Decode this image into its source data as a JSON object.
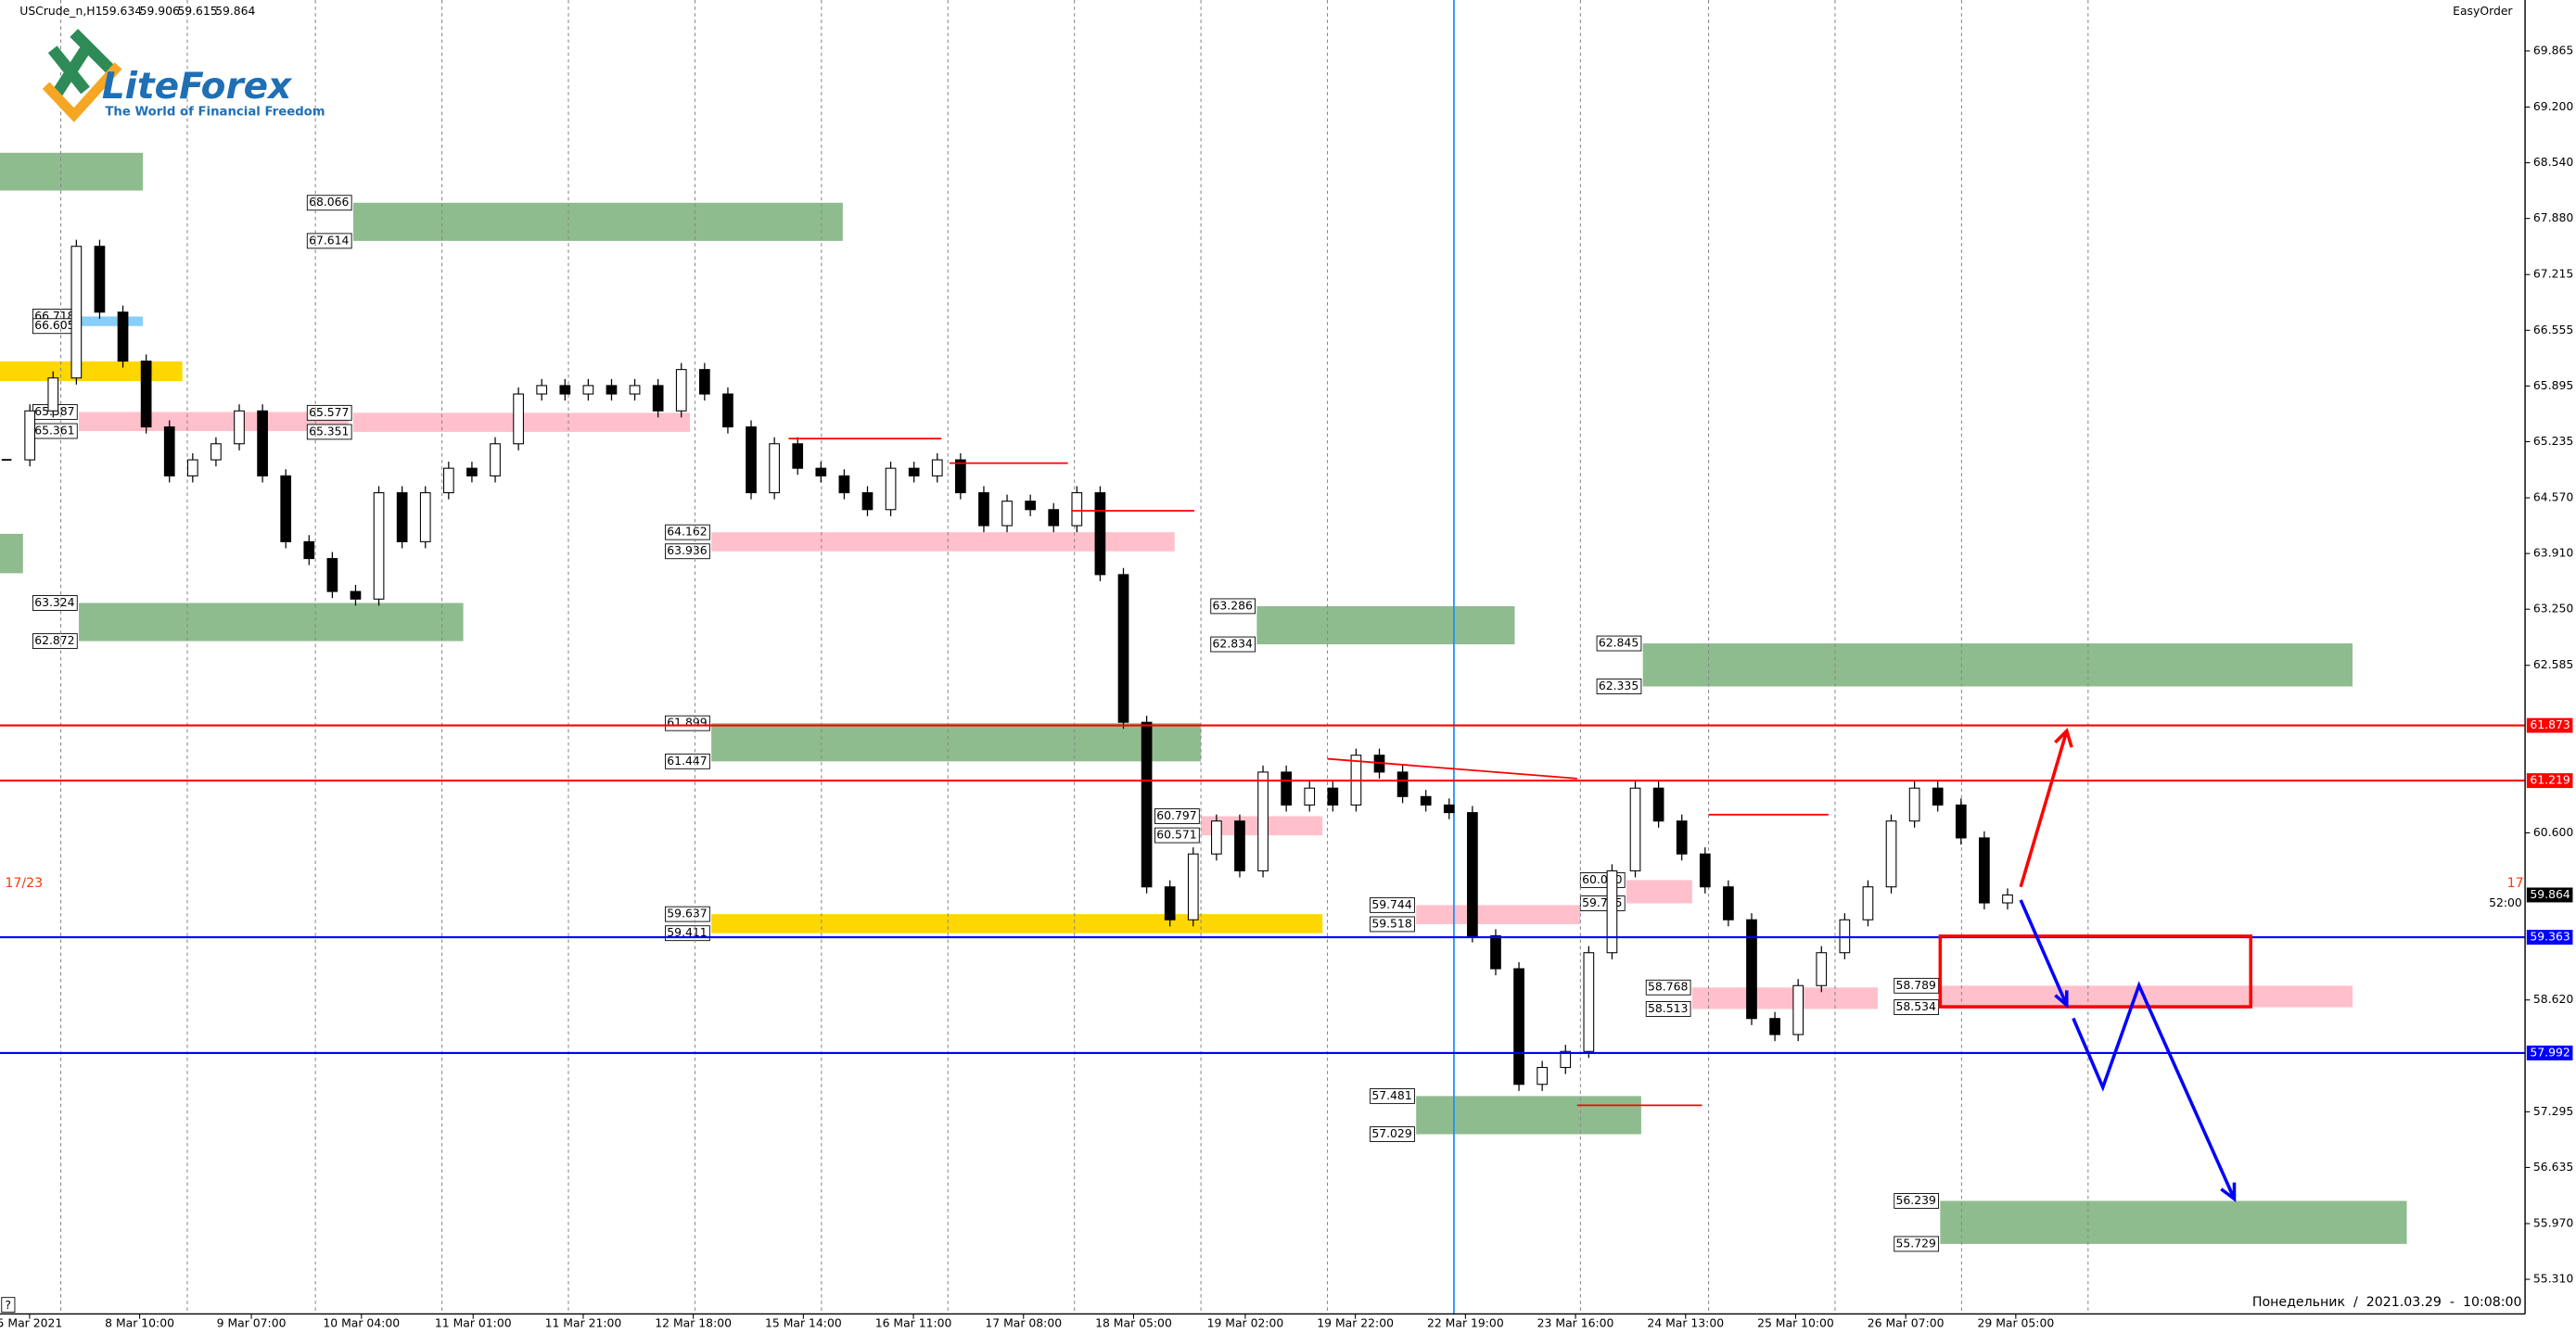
{
  "header": {
    "symbol": "USCrude_n,H1",
    "ohlc": [
      59.634,
      59.906,
      59.615,
      59.864
    ],
    "easy_order": "EasyOrder",
    "help": "?"
  },
  "logo": {
    "name": "LiteForex",
    "tagline": "The World of Financial Freedom"
  },
  "timer": {
    "left": "17/23",
    "right": "17",
    "countdown": "52:00"
  },
  "footer": "Понедельник  /  2021.03.29  -  10:08:00",
  "chart_data": {
    "type": "candlestick",
    "time_labels": [
      "5 Mar 2021",
      "8 Mar 10:00",
      "9 Mar 07:00",
      "10 Mar 04:00",
      "11 Mar 01:00",
      "11 Mar 21:00",
      "12 Mar 18:00",
      "15 Mar 14:00",
      "16 Mar 11:00",
      "17 Mar 08:00",
      "18 Mar 05:00",
      "19 Mar 02:00",
      "19 Mar 22:00",
      "22 Mar 19:00",
      "23 Mar 16:00",
      "24 Mar 13:00",
      "25 Mar 10:00",
      "26 Mar 07:00",
      "29 Mar 05:00"
    ],
    "values": [
      65.02,
      65.6,
      65.99,
      67.55,
      66.77,
      66.19,
      65.41,
      64.83,
      65.02,
      65.21,
      65.6,
      64.83,
      64.05,
      63.85,
      63.46,
      63.37,
      64.63,
      64.05,
      64.63,
      64.92,
      64.83,
      65.21,
      65.8,
      65.9,
      65.8,
      65.9,
      65.8,
      65.9,
      65.6,
      66.09,
      65.8,
      65.41,
      64.63,
      65.21,
      64.92,
      64.83,
      64.63,
      64.43,
      64.92,
      64.83,
      65.02,
      64.63,
      64.24,
      64.53,
      64.43,
      64.24,
      64.63,
      63.66,
      61.91,
      59.96,
      59.57,
      60.35,
      60.74,
      60.15,
      61.32,
      60.93,
      61.13,
      60.93,
      61.52,
      61.32,
      61.03,
      60.93,
      60.84,
      59.38,
      58.99,
      57.62,
      57.82,
      58.01,
      59.18,
      60.15,
      61.13,
      60.74,
      60.35,
      59.96,
      59.57,
      58.4,
      58.21,
      58.79,
      59.18,
      59.57,
      59.96,
      60.74,
      61.13,
      60.93,
      60.54,
      59.77,
      59.864
    ],
    "ylim": [
      54.9,
      70.468
    ],
    "yticks": [
      69.865,
      {
        "value": 69.2,
        "label": "69.200"
      },
      {
        "value": 68.54,
        "label": "68.540"
      },
      {
        "value": 67.88,
        "label": "67.880"
      },
      67.215,
      66.555,
      65.895,
      65.235,
      {
        "value": 64.57,
        "label": "64.570"
      },
      {
        "value": 63.91,
        "label": "63.910"
      },
      {
        "value": 63.25,
        "label": "63.250"
      },
      62.585,
      {
        "value": 60.6,
        "label": "60.600"
      },
      {
        "value": 58.62,
        "label": "58.620"
      },
      57.295,
      56.635,
      {
        "value": 55.97,
        "label": "55.970"
      },
      {
        "value": 55.31,
        "label": "55.310"
      }
    ],
    "levels": [
      {
        "value": 61.873,
        "color": "#ff0000"
      },
      {
        "value": 61.219,
        "color": "#ff0000"
      },
      {
        "value": 59.864,
        "color": "#000000"
      },
      {
        "value": 59.363,
        "color": "#0000ff"
      },
      {
        "value": 57.992,
        "color": "#0000ff"
      }
    ],
    "zones": [
      {
        "top": 68.066,
        "bottom": 67.614,
        "color": "#8fbc8f"
      },
      {
        "top": 63.324,
        "bottom": 62.872,
        "color": "#8fbc8f"
      },
      {
        "top": 63.286,
        "bottom": 62.834,
        "color": "#8fbc8f"
      },
      {
        "top": 61.899,
        "bottom": 61.447,
        "color": "#8fbc8f"
      },
      {
        "top": 59.637,
        "bottom": 59.411,
        "color": "#ffd700"
      },
      {
        "top": 62.845,
        "bottom": 62.335,
        "color": "#8fbc8f"
      },
      {
        "top": 59.744,
        "bottom": 59.518,
        "color": "#ffc0cb"
      },
      {
        "top": 57.481,
        "bottom": 57.029,
        "color": "#8fbc8f"
      },
      {
        "top": 58.789,
        "bottom": 58.534,
        "color": "#ffc0cb"
      },
      {
        "top": 56.239,
        "bottom": 55.729,
        "color": "#8fbc8f"
      },
      {
        "top": 64.162,
        "bottom": 63.936,
        "color": "#ffc0cb"
      },
      {
        "top": 65.587,
        "bottom": 65.361,
        "color": "#ffc0cb"
      },
      {
        "top": 65.577,
        "bottom": 65.351,
        "color": "#ffc0cb"
      },
      {
        "top": 66.718,
        "bottom": 66.605,
        "color": "#87cefa"
      },
      {
        "top": 60.797,
        "bottom": 60.571,
        "color": "#ffc0cb"
      },
      {
        "top": {
          "value": 60.04,
          "label": "60.040"
        },
        "bottom": 59.765,
        "color": "#ffc0cb"
      },
      {
        "top": 58.768,
        "bottom": 58.513,
        "color": "#ffc0cb"
      }
    ]
  }
}
